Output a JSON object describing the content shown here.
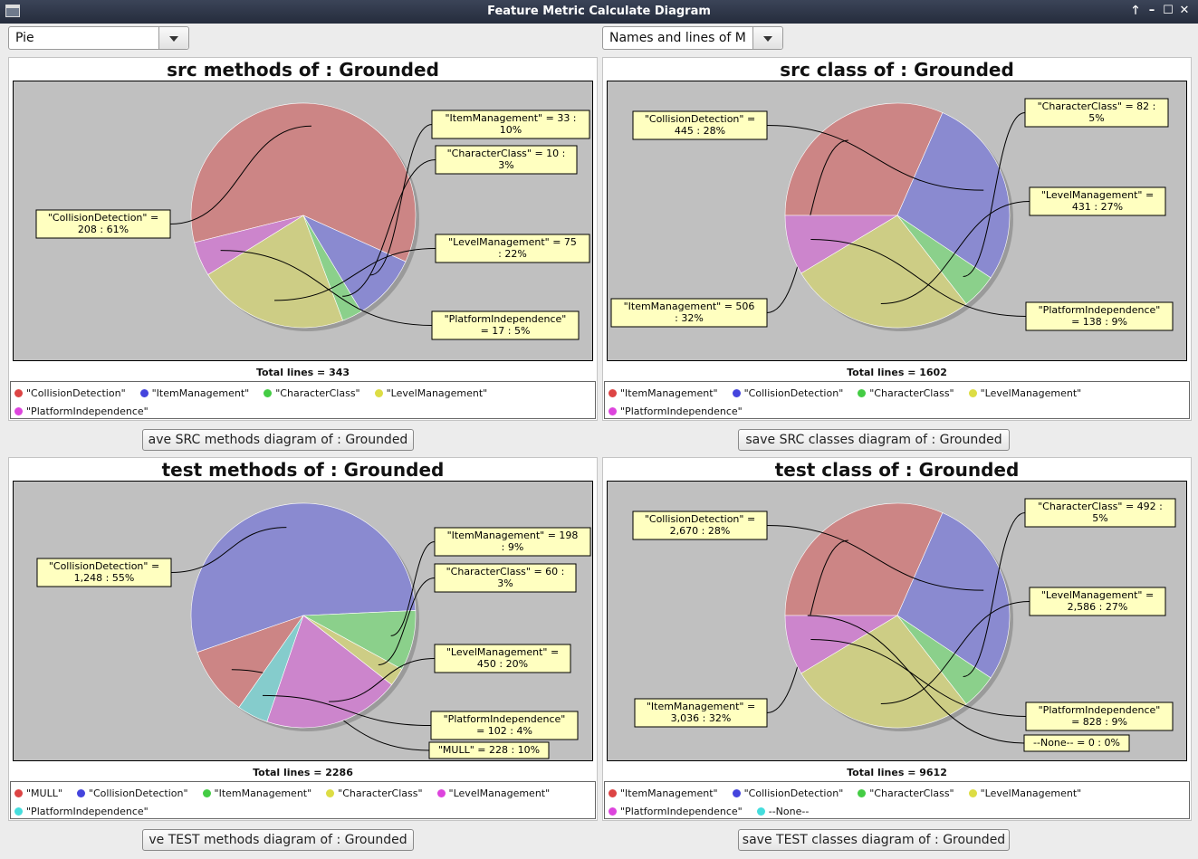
{
  "window": {
    "title": "Feature Metric Calculate Diagram",
    "controls": [
      "🡑",
      "–",
      "☐",
      "✕"
    ]
  },
  "toolbar": {
    "chart_type": "Pie",
    "metric": "Names and lines of M"
  },
  "colors": {
    "CollisionDetection_red": "#cc8585",
    "ItemManagement_blue": "#8a8ad0",
    "CharacterClass_green": "#8bd08b",
    "LevelManagement_yellow": "#cdcd85",
    "PlatformIndependence_magenta": "#cc85cc",
    "None_cyan": "#85cccc"
  },
  "panels": [
    {
      "title": "src methods of : Grounded",
      "total": "Total lines = 343",
      "legend": [
        {
          "label": "\"CollisionDetection\"",
          "color": "#dd4444"
        },
        {
          "label": "\"ItemManagement\"",
          "color": "#4444dd"
        },
        {
          "label": "\"CharacterClass\"",
          "color": "#44cc44"
        },
        {
          "label": "\"LevelManagement\"",
          "color": "#dddd44"
        },
        {
          "label": "\"PlatformIndependence\"",
          "color": "#dd44dd"
        }
      ],
      "button": "ave SRC methods diagram of : Grounded",
      "chart_data": {
        "type": "pie",
        "title": "src methods of : Grounded",
        "total": 343,
        "slices": [
          {
            "name": "\"CollisionDetection\"",
            "value": 208,
            "percent": 61,
            "color": "#cc8585",
            "label_lines": [
              "\"CollisionDetection\"   =",
              "208 : 61%"
            ]
          },
          {
            "name": "\"ItemManagement\"",
            "value": 33,
            "percent": 10,
            "color": "#8a8ad0",
            "label_lines": [
              "\"ItemManagement\"   = 33 :",
              "10%"
            ]
          },
          {
            "name": "\"CharacterClass\"",
            "value": 10,
            "percent": 3,
            "color": "#8bd08b",
            "label_lines": [
              "\"CharacterClass\"   = 10 :",
              "3%"
            ]
          },
          {
            "name": "\"LevelManagement\"",
            "value": 75,
            "percent": 22,
            "color": "#cdcd85",
            "label_lines": [
              "\"LevelManagement\"   = 75",
              ": 22%"
            ]
          },
          {
            "name": "\"PlatformIndependence\"",
            "value": 17,
            "percent": 5,
            "color": "#cc85cc",
            "label_lines": [
              "\"PlatformIndependence\"",
              "= 17 : 5%"
            ]
          }
        ]
      }
    },
    {
      "title": "src class of : Grounded",
      "total": "Total lines = 1602",
      "legend": [
        {
          "label": "\"ItemManagement\"",
          "color": "#dd4444"
        },
        {
          "label": "\"CollisionDetection\"",
          "color": "#4444dd"
        },
        {
          "label": "\"CharacterClass\"",
          "color": "#44cc44"
        },
        {
          "label": "\"LevelManagement\"",
          "color": "#dddd44"
        },
        {
          "label": "\"PlatformIndependence\"",
          "color": "#dd44dd"
        }
      ],
      "button": "save SRC classes diagram of : Grounded",
      "chart_data": {
        "type": "pie",
        "title": "src class of : Grounded",
        "total": 1602,
        "slices": [
          {
            "name": "\"ItemManagement\"",
            "value": 506,
            "percent": 32,
            "color": "#cc8585",
            "label_lines": [
              "\"ItemManagement\"   = 506",
              ": 32%"
            ]
          },
          {
            "name": "\"CollisionDetection\"",
            "value": 445,
            "percent": 28,
            "color": "#8a8ad0",
            "label_lines": [
              "\"CollisionDetection\"   =",
              "445 : 28%"
            ]
          },
          {
            "name": "\"CharacterClass\"",
            "value": 82,
            "percent": 5,
            "color": "#8bd08b",
            "label_lines": [
              "\"CharacterClass\"   = 82 :",
              "5%"
            ]
          },
          {
            "name": "\"LevelManagement\"",
            "value": 431,
            "percent": 27,
            "color": "#cdcd85",
            "label_lines": [
              "\"LevelManagement\"   =",
              "431 : 27%"
            ]
          },
          {
            "name": "\"PlatformIndependence\"",
            "value": 138,
            "percent": 9,
            "color": "#cc85cc",
            "label_lines": [
              "\"PlatformIndependence\"",
              "= 138 : 9%"
            ]
          }
        ]
      }
    },
    {
      "title": "test methods of : Grounded",
      "total": "Total lines = 2286",
      "legend": [
        {
          "label": "\"MULL\"",
          "color": "#dd4444"
        },
        {
          "label": "\"CollisionDetection\"",
          "color": "#4444dd"
        },
        {
          "label": "\"ItemManagement\"",
          "color": "#44cc44"
        },
        {
          "label": "\"CharacterClass\"",
          "color": "#dddd44"
        },
        {
          "label": "\"LevelManagement\"",
          "color": "#dd44dd"
        },
        {
          "label": "\"PlatformIndependence\"",
          "color": "#44dddd"
        }
      ],
      "button": "ve TEST methods diagram of : Grounded",
      "chart_data": {
        "type": "pie",
        "title": "test methods of : Grounded",
        "total": 2286,
        "slices": [
          {
            "name": "\"MULL\"",
            "value": 228,
            "percent": 10,
            "color": "#cc8585",
            "label_lines": [
              "\"MULL\"   = 228 : 10%"
            ]
          },
          {
            "name": "\"CollisionDetection\"",
            "value": 1248,
            "percent": 55,
            "color": "#8a8ad0",
            "label_lines": [
              "\"CollisionDetection\"   =",
              "1,248 : 55%"
            ]
          },
          {
            "name": "\"ItemManagement\"",
            "value": 198,
            "percent": 9,
            "color": "#8bd08b",
            "label_lines": [
              "\"ItemManagement\"   = 198",
              ": 9%"
            ]
          },
          {
            "name": "\"CharacterClass\"",
            "value": 60,
            "percent": 3,
            "color": "#cdcd85",
            "label_lines": [
              "\"CharacterClass\"   = 60 :",
              "3%"
            ]
          },
          {
            "name": "\"LevelManagement\"",
            "value": 450,
            "percent": 20,
            "color": "#cc85cc",
            "label_lines": [
              "\"LevelManagement\"   =",
              "450 : 20%"
            ]
          },
          {
            "name": "\"PlatformIndependence\"",
            "value": 102,
            "percent": 4,
            "color": "#85cccc",
            "label_lines": [
              "\"PlatformIndependence\"",
              "= 102 : 4%"
            ]
          }
        ]
      }
    },
    {
      "title": "test class of : Grounded",
      "total": "Total lines = 9612",
      "legend": [
        {
          "label": "\"ItemManagement\"",
          "color": "#dd4444"
        },
        {
          "label": "\"CollisionDetection\"",
          "color": "#4444dd"
        },
        {
          "label": "\"CharacterClass\"",
          "color": "#44cc44"
        },
        {
          "label": "\"LevelManagement\"",
          "color": "#dddd44"
        },
        {
          "label": "\"PlatformIndependence\"",
          "color": "#dd44dd"
        },
        {
          "label": "--None--",
          "color": "#44dddd"
        }
      ],
      "button": "save TEST classes diagram of : Grounded",
      "chart_data": {
        "type": "pie",
        "title": "test class of : Grounded",
        "total": 9612,
        "slices": [
          {
            "name": "\"ItemManagement\"",
            "value": 3036,
            "percent": 32,
            "color": "#cc8585",
            "label_lines": [
              "\"ItemManagement\"   =",
              "3,036 : 32%"
            ]
          },
          {
            "name": "\"CollisionDetection\"",
            "value": 2670,
            "percent": 28,
            "color": "#8a8ad0",
            "label_lines": [
              "\"CollisionDetection\"   =",
              "2,670 : 28%"
            ]
          },
          {
            "name": "\"CharacterClass\"",
            "value": 492,
            "percent": 5,
            "color": "#8bd08b",
            "label_lines": [
              "\"CharacterClass\"   = 492 :",
              "5%"
            ]
          },
          {
            "name": "\"LevelManagement\"",
            "value": 2586,
            "percent": 27,
            "color": "#cdcd85",
            "label_lines": [
              "\"LevelManagement\"   =",
              "2,586 : 27%"
            ]
          },
          {
            "name": "\"PlatformIndependence\"",
            "value": 828,
            "percent": 9,
            "color": "#cc85cc",
            "label_lines": [
              "\"PlatformIndependence\"",
              "= 828 : 9%"
            ]
          },
          {
            "name": "--None--",
            "value": 0,
            "percent": 0,
            "color": "#85cccc",
            "label_lines": [
              "--None--   = 0 : 0%"
            ]
          }
        ]
      }
    }
  ]
}
